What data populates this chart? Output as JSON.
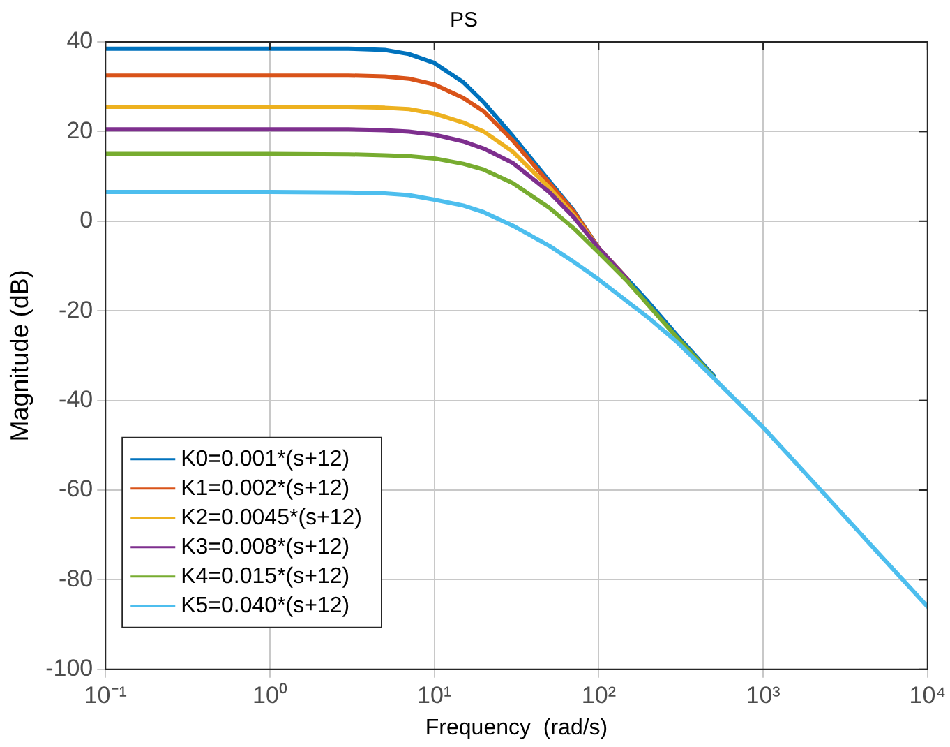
{
  "chart_data": {
    "type": "line",
    "title": "PS",
    "xlabel": "Frequency  (rad/s)",
    "ylabel": "Magnitude (dB)",
    "log": "x",
    "grid": true,
    "legend": "bottom left",
    "marker": "none",
    "line_style": "solid",
    "xlim": [
      0.1,
      10000
    ],
    "xticks": [
      {
        "value": 0.1,
        "label": "10⁻¹"
      },
      {
        "value": 1,
        "label": "10⁰"
      },
      {
        "value": 10,
        "label": "10¹"
      },
      {
        "value": 100,
        "label": "10²"
      },
      {
        "value": 1000,
        "label": "10³"
      },
      {
        "value": 10000,
        "label": "10⁴"
      }
    ],
    "ylim": [
      -100,
      40
    ],
    "yticks": [
      -100,
      -80,
      -60,
      -40,
      -20,
      0,
      20,
      40
    ],
    "x": [
      0.1,
      1,
      3,
      5,
      7,
      10,
      15,
      20,
      30,
      50,
      70,
      100,
      150,
      200,
      300,
      500,
      1000,
      2000,
      5000,
      10000
    ],
    "series": [
      {
        "name": "K0=0.001*(s+12)",
        "color": "#0072bd",
        "values": [
          38.5,
          38.5,
          38.5,
          38.2,
          37.3,
          35.3,
          31,
          26.5,
          19,
          9,
          2.5,
          -6,
          -13,
          -18,
          -25.5,
          -34.5,
          null,
          null,
          null,
          null
        ]
      },
      {
        "name": "K1=0.002*(s+12)",
        "color": "#d95319",
        "values": [
          32.5,
          32.5,
          32.5,
          32.3,
          31.8,
          30.5,
          27.5,
          24.5,
          18,
          8.5,
          2.3,
          -6,
          -13,
          null,
          null,
          null,
          null,
          null,
          null,
          null
        ]
      },
      {
        "name": "K2=0.0045*(s+12)",
        "color": "#edb120",
        "values": [
          25.5,
          25.5,
          25.5,
          25.3,
          25,
          24,
          22,
          20,
          15.5,
          7.5,
          1.5,
          -6,
          -13,
          null,
          null,
          null,
          null,
          null,
          null,
          null
        ]
      },
      {
        "name": "K3=0.008*(s+12)",
        "color": "#7e2f8e",
        "values": [
          20.5,
          20.5,
          20.5,
          20.3,
          20,
          19.3,
          17.8,
          16.2,
          13,
          6.5,
          1,
          -6,
          -13,
          null,
          null,
          null,
          null,
          null,
          null,
          null
        ]
      },
      {
        "name": "K4=0.015*(s+12)",
        "color": "#77ac30",
        "values": [
          15,
          15,
          14.9,
          14.7,
          14.5,
          14,
          12.8,
          11.5,
          8.5,
          3,
          -1.5,
          -7,
          -13.5,
          -18.7,
          -26,
          -34.8,
          null,
          null,
          null,
          null
        ]
      },
      {
        "name": "K5=0.040*(s+12)",
        "color": "#4dbeee",
        "values": [
          6.5,
          6.5,
          6.4,
          6.2,
          5.8,
          4.8,
          3.5,
          2,
          -1,
          -5.5,
          -9,
          -13,
          -18,
          -21.5,
          -27,
          -35,
          -46,
          -58,
          -74,
          -86
        ]
      }
    ]
  }
}
